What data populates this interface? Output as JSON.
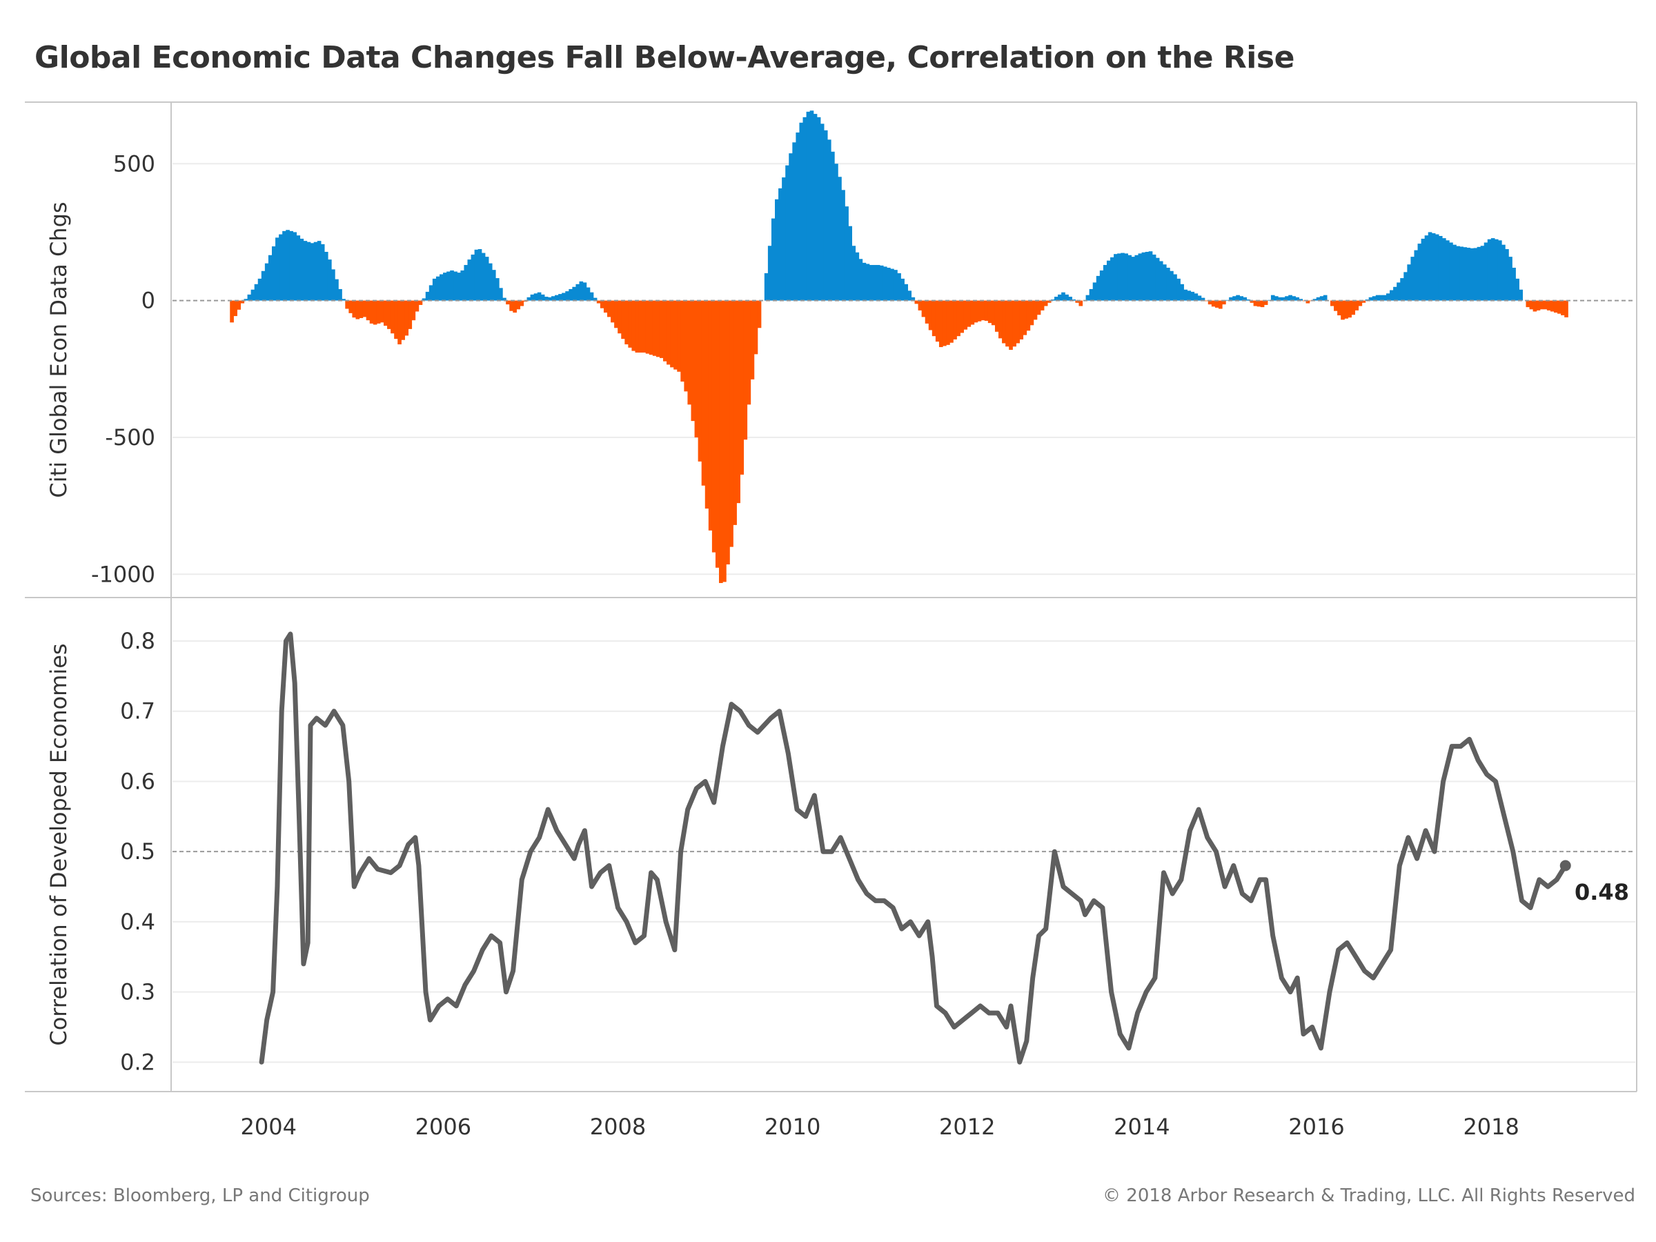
{
  "title": "Global Economic Data Changes Fall Below-Average, Correlation on the Rise",
  "footer": {
    "sources": "Sources: Bloomberg, LP  and Citigroup",
    "copyright": "© 2018 Arbor Research & Trading, LLC. All Rights Reserved"
  },
  "colors": {
    "positive": "#0a8ad3",
    "negative": "#ff5500",
    "line": "#5f5f5f",
    "reference": "#999999",
    "grid": "#ececec",
    "frame": "#c8c8c8"
  },
  "chart_data": [
    {
      "type": "bar",
      "ylabel": "Citi Global Econ Data Chgs",
      "ylim": [
        -1080,
        720
      ],
      "yticks": [
        500,
        0,
        -500,
        -1000
      ],
      "reference_line": 0,
      "positive_color": "#0a8ad3",
      "negative_color": "#ff5500",
      "points": [
        [
          2003.58,
          -80
        ],
        [
          2003.7,
          -10
        ],
        [
          2003.8,
          30
        ],
        [
          2003.9,
          80
        ],
        [
          2004.0,
          150
        ],
        [
          2004.1,
          230
        ],
        [
          2004.2,
          260
        ],
        [
          2004.3,
          250
        ],
        [
          2004.4,
          220
        ],
        [
          2004.5,
          210
        ],
        [
          2004.6,
          220
        ],
        [
          2004.7,
          150
        ],
        [
          2004.8,
          60
        ],
        [
          2004.9,
          -30
        ],
        [
          2005.0,
          -70
        ],
        [
          2005.1,
          -60
        ],
        [
          2005.2,
          -90
        ],
        [
          2005.3,
          -80
        ],
        [
          2005.4,
          -110
        ],
        [
          2005.5,
          -160
        ],
        [
          2005.6,
          -120
        ],
        [
          2005.7,
          -40
        ],
        [
          2005.8,
          20
        ],
        [
          2005.9,
          80
        ],
        [
          2006.0,
          100
        ],
        [
          2006.1,
          110
        ],
        [
          2006.2,
          100
        ],
        [
          2006.3,
          150
        ],
        [
          2006.4,
          195
        ],
        [
          2006.5,
          160
        ],
        [
          2006.6,
          100
        ],
        [
          2006.7,
          10
        ],
        [
          2006.8,
          -50
        ],
        [
          2006.9,
          -20
        ],
        [
          2007.0,
          20
        ],
        [
          2007.1,
          30
        ],
        [
          2007.2,
          10
        ],
        [
          2007.3,
          20
        ],
        [
          2007.4,
          30
        ],
        [
          2007.5,
          50
        ],
        [
          2007.6,
          75
        ],
        [
          2007.7,
          30
        ],
        [
          2007.8,
          -20
        ],
        [
          2007.9,
          -60
        ],
        [
          2008.0,
          -110
        ],
        [
          2008.1,
          -160
        ],
        [
          2008.2,
          -190
        ],
        [
          2008.3,
          -190
        ],
        [
          2008.4,
          -200
        ],
        [
          2008.5,
          -210
        ],
        [
          2008.6,
          -240
        ],
        [
          2008.7,
          -260
        ],
        [
          2008.8,
          -350
        ],
        [
          2008.9,
          -500
        ],
        [
          2009.0,
          -720
        ],
        [
          2009.1,
          -920
        ],
        [
          2009.2,
          -1060
        ],
        [
          2009.3,
          -900
        ],
        [
          2009.4,
          -700
        ],
        [
          2009.5,
          -380
        ],
        [
          2009.6,
          -150
        ],
        [
          2009.7,
          100
        ],
        [
          2009.8,
          350
        ],
        [
          2009.9,
          450
        ],
        [
          2010.0,
          560
        ],
        [
          2010.1,
          650
        ],
        [
          2010.2,
          700
        ],
        [
          2010.3,
          670
        ],
        [
          2010.4,
          610
        ],
        [
          2010.5,
          500
        ],
        [
          2010.6,
          380
        ],
        [
          2010.7,
          200
        ],
        [
          2010.8,
          140
        ],
        [
          2010.9,
          130
        ],
        [
          2011.0,
          130
        ],
        [
          2011.1,
          120
        ],
        [
          2011.2,
          110
        ],
        [
          2011.3,
          60
        ],
        [
          2011.4,
          0
        ],
        [
          2011.5,
          -60
        ],
        [
          2011.6,
          -120
        ],
        [
          2011.7,
          -170
        ],
        [
          2011.8,
          -160
        ],
        [
          2011.9,
          -130
        ],
        [
          2012.0,
          -100
        ],
        [
          2012.1,
          -80
        ],
        [
          2012.2,
          -70
        ],
        [
          2012.3,
          -90
        ],
        [
          2012.4,
          -150
        ],
        [
          2012.5,
          -180
        ],
        [
          2012.6,
          -150
        ],
        [
          2012.7,
          -110
        ],
        [
          2012.8,
          -60
        ],
        [
          2012.9,
          -20
        ],
        [
          2013.0,
          10
        ],
        [
          2013.1,
          30
        ],
        [
          2013.2,
          10
        ],
        [
          2013.3,
          -20
        ],
        [
          2013.4,
          30
        ],
        [
          2013.5,
          90
        ],
        [
          2013.6,
          140
        ],
        [
          2013.7,
          170
        ],
        [
          2013.8,
          175
        ],
        [
          2013.9,
          160
        ],
        [
          2014.0,
          175
        ],
        [
          2014.1,
          180
        ],
        [
          2014.2,
          150
        ],
        [
          2014.3,
          120
        ],
        [
          2014.4,
          90
        ],
        [
          2014.5,
          40
        ],
        [
          2014.6,
          30
        ],
        [
          2014.7,
          10
        ],
        [
          2014.8,
          -20
        ],
        [
          2014.9,
          -30
        ],
        [
          2015.0,
          10
        ],
        [
          2015.1,
          20
        ],
        [
          2015.2,
          10
        ],
        [
          2015.3,
          -20
        ],
        [
          2015.4,
          -25
        ],
        [
          2015.5,
          20
        ],
        [
          2015.6,
          10
        ],
        [
          2015.7,
          20
        ],
        [
          2015.8,
          10
        ],
        [
          2015.9,
          -10
        ],
        [
          2016.0,
          10
        ],
        [
          2016.1,
          20
        ],
        [
          2016.2,
          -30
        ],
        [
          2016.3,
          -70
        ],
        [
          2016.4,
          -60
        ],
        [
          2016.5,
          -20
        ],
        [
          2016.6,
          10
        ],
        [
          2016.7,
          20
        ],
        [
          2016.8,
          20
        ],
        [
          2016.9,
          50
        ],
        [
          2017.0,
          90
        ],
        [
          2017.1,
          160
        ],
        [
          2017.2,
          220
        ],
        [
          2017.3,
          250
        ],
        [
          2017.4,
          240
        ],
        [
          2017.5,
          220
        ],
        [
          2017.6,
          200
        ],
        [
          2017.7,
          195
        ],
        [
          2017.8,
          190
        ],
        [
          2017.9,
          200
        ],
        [
          2018.0,
          230
        ],
        [
          2018.1,
          220
        ],
        [
          2018.2,
          180
        ],
        [
          2018.3,
          80
        ],
        [
          2018.4,
          -20
        ],
        [
          2018.5,
          -40
        ],
        [
          2018.6,
          -30
        ],
        [
          2018.7,
          -40
        ],
        [
          2018.8,
          -50
        ],
        [
          2018.88,
          -65
        ]
      ]
    },
    {
      "type": "line",
      "xlabel": "",
      "ylabel": "Correlation of Developed Economies",
      "ylim": [
        0.16,
        0.86
      ],
      "yticks": [
        0.8,
        0.7,
        0.6,
        0.5,
        0.4,
        0.3,
        0.2
      ],
      "reference_line": 0.5,
      "last_value_label": "0.48",
      "points": [
        [
          2003.92,
          0.2
        ],
        [
          2003.98,
          0.26
        ],
        [
          2004.05,
          0.3
        ],
        [
          2004.1,
          0.45
        ],
        [
          2004.15,
          0.7
        ],
        [
          2004.2,
          0.8
        ],
        [
          2004.25,
          0.81
        ],
        [
          2004.3,
          0.74
        ],
        [
          2004.35,
          0.55
        ],
        [
          2004.4,
          0.34
        ],
        [
          2004.45,
          0.37
        ],
        [
          2004.48,
          0.68
        ],
        [
          2004.55,
          0.69
        ],
        [
          2004.65,
          0.68
        ],
        [
          2004.75,
          0.7
        ],
        [
          2004.85,
          0.68
        ],
        [
          2004.92,
          0.6
        ],
        [
          2004.98,
          0.45
        ],
        [
          2005.05,
          0.47
        ],
        [
          2005.15,
          0.49
        ],
        [
          2005.25,
          0.475
        ],
        [
          2005.4,
          0.47
        ],
        [
          2005.5,
          0.48
        ],
        [
          2005.6,
          0.51
        ],
        [
          2005.68,
          0.52
        ],
        [
          2005.72,
          0.48
        ],
        [
          2005.8,
          0.3
        ],
        [
          2005.85,
          0.26
        ],
        [
          2005.95,
          0.28
        ],
        [
          2006.05,
          0.29
        ],
        [
          2006.15,
          0.28
        ],
        [
          2006.25,
          0.31
        ],
        [
          2006.35,
          0.33
        ],
        [
          2006.45,
          0.36
        ],
        [
          2006.55,
          0.38
        ],
        [
          2006.65,
          0.37
        ],
        [
          2006.72,
          0.3
        ],
        [
          2006.8,
          0.33
        ],
        [
          2006.9,
          0.46
        ],
        [
          2007.0,
          0.5
        ],
        [
          2007.1,
          0.52
        ],
        [
          2007.2,
          0.56
        ],
        [
          2007.3,
          0.53
        ],
        [
          2007.4,
          0.51
        ],
        [
          2007.5,
          0.49
        ],
        [
          2007.55,
          0.51
        ],
        [
          2007.62,
          0.53
        ],
        [
          2007.7,
          0.45
        ],
        [
          2007.8,
          0.47
        ],
        [
          2007.9,
          0.48
        ],
        [
          2008.0,
          0.42
        ],
        [
          2008.1,
          0.4
        ],
        [
          2008.2,
          0.37
        ],
        [
          2008.3,
          0.38
        ],
        [
          2008.38,
          0.47
        ],
        [
          2008.45,
          0.46
        ],
        [
          2008.55,
          0.4
        ],
        [
          2008.65,
          0.36
        ],
        [
          2008.72,
          0.5
        ],
        [
          2008.8,
          0.56
        ],
        [
          2008.9,
          0.59
        ],
        [
          2009.0,
          0.6
        ],
        [
          2009.1,
          0.57
        ],
        [
          2009.2,
          0.65
        ],
        [
          2009.3,
          0.71
        ],
        [
          2009.4,
          0.7
        ],
        [
          2009.5,
          0.68
        ],
        [
          2009.6,
          0.67
        ],
        [
          2009.75,
          0.69
        ],
        [
          2009.85,
          0.7
        ],
        [
          2009.95,
          0.64
        ],
        [
          2010.05,
          0.56
        ],
        [
          2010.15,
          0.55
        ],
        [
          2010.25,
          0.58
        ],
        [
          2010.35,
          0.5
        ],
        [
          2010.45,
          0.5
        ],
        [
          2010.55,
          0.52
        ],
        [
          2010.65,
          0.49
        ],
        [
          2010.75,
          0.46
        ],
        [
          2010.85,
          0.44
        ],
        [
          2010.95,
          0.43
        ],
        [
          2011.05,
          0.43
        ],
        [
          2011.15,
          0.42
        ],
        [
          2011.25,
          0.39
        ],
        [
          2011.35,
          0.4
        ],
        [
          2011.45,
          0.38
        ],
        [
          2011.55,
          0.4
        ],
        [
          2011.6,
          0.35
        ],
        [
          2011.65,
          0.28
        ],
        [
          2011.75,
          0.27
        ],
        [
          2011.85,
          0.25
        ],
        [
          2011.95,
          0.26
        ],
        [
          2012.05,
          0.27
        ],
        [
          2012.15,
          0.28
        ],
        [
          2012.25,
          0.27
        ],
        [
          2012.35,
          0.27
        ],
        [
          2012.45,
          0.25
        ],
        [
          2012.5,
          0.28
        ],
        [
          2012.6,
          0.2
        ],
        [
          2012.68,
          0.23
        ],
        [
          2012.75,
          0.32
        ],
        [
          2012.82,
          0.38
        ],
        [
          2012.9,
          0.39
        ],
        [
          2013.0,
          0.5
        ],
        [
          2013.1,
          0.45
        ],
        [
          2013.2,
          0.44
        ],
        [
          2013.3,
          0.43
        ],
        [
          2013.35,
          0.41
        ],
        [
          2013.45,
          0.43
        ],
        [
          2013.55,
          0.42
        ],
        [
          2013.65,
          0.3
        ],
        [
          2013.75,
          0.24
        ],
        [
          2013.85,
          0.22
        ],
        [
          2013.95,
          0.27
        ],
        [
          2014.05,
          0.3
        ],
        [
          2014.15,
          0.32
        ],
        [
          2014.25,
          0.47
        ],
        [
          2014.35,
          0.44
        ],
        [
          2014.45,
          0.46
        ],
        [
          2014.55,
          0.53
        ],
        [
          2014.65,
          0.56
        ],
        [
          2014.75,
          0.52
        ],
        [
          2014.85,
          0.5
        ],
        [
          2014.95,
          0.45
        ],
        [
          2015.05,
          0.48
        ],
        [
          2015.15,
          0.44
        ],
        [
          2015.25,
          0.43
        ],
        [
          2015.35,
          0.46
        ],
        [
          2015.42,
          0.46
        ],
        [
          2015.5,
          0.38
        ],
        [
          2015.6,
          0.32
        ],
        [
          2015.7,
          0.3
        ],
        [
          2015.78,
          0.32
        ],
        [
          2015.85,
          0.24
        ],
        [
          2015.95,
          0.25
        ],
        [
          2016.05,
          0.22
        ],
        [
          2016.15,
          0.3
        ],
        [
          2016.25,
          0.36
        ],
        [
          2016.35,
          0.37
        ],
        [
          2016.45,
          0.35
        ],
        [
          2016.55,
          0.33
        ],
        [
          2016.65,
          0.32
        ],
        [
          2016.75,
          0.34
        ],
        [
          2016.85,
          0.36
        ],
        [
          2016.95,
          0.48
        ],
        [
          2017.05,
          0.52
        ],
        [
          2017.15,
          0.49
        ],
        [
          2017.25,
          0.53
        ],
        [
          2017.35,
          0.5
        ],
        [
          2017.45,
          0.6
        ],
        [
          2017.55,
          0.65
        ],
        [
          2017.65,
          0.65
        ],
        [
          2017.75,
          0.66
        ],
        [
          2017.85,
          0.63
        ],
        [
          2017.95,
          0.61
        ],
        [
          2018.05,
          0.6
        ],
        [
          2018.15,
          0.55
        ],
        [
          2018.25,
          0.5
        ],
        [
          2018.35,
          0.43
        ],
        [
          2018.45,
          0.42
        ],
        [
          2018.55,
          0.46
        ],
        [
          2018.65,
          0.45
        ],
        [
          2018.75,
          0.46
        ],
        [
          2018.85,
          0.48
        ]
      ]
    }
  ],
  "x_axis": {
    "range": [
      2002.9,
      2019.65
    ],
    "ticks": [
      2004,
      2006,
      2008,
      2010,
      2012,
      2014,
      2016,
      2018
    ]
  }
}
